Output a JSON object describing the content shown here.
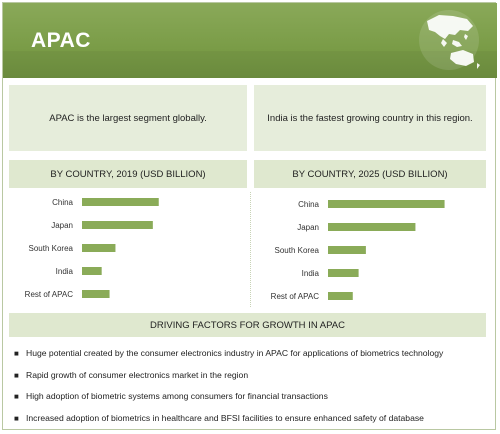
{
  "header": {
    "title": "APAC",
    "map_icon": "asia-pacific-map-icon"
  },
  "callouts": {
    "left": "APAC is the largest segment globally.",
    "right": "India is the fastest growing country in this region."
  },
  "charts_titles": {
    "left": "BY COUNTRY, 2019 (USD BILLION)",
    "right": "BY COUNTRY, 2025 (USD BILLION)"
  },
  "chart_data": [
    {
      "type": "bar",
      "orientation": "horizontal",
      "title": "BY COUNTRY, 2019 (USD BILLION)",
      "categories": [
        "China",
        "Japan",
        "South Korea",
        "India",
        "Rest of APAC"
      ],
      "values": [
        3.9,
        3.6,
        1.7,
        1.0,
        1.4
      ],
      "xlim": [
        0,
        6.2
      ],
      "grid": false,
      "color": "#8aab58"
    },
    {
      "type": "bar",
      "orientation": "horizontal",
      "title": "BY COUNTRY, 2025 (USD BILLION)",
      "categories": [
        "China",
        "Japan",
        "South Korea",
        "India",
        "Rest of APAC"
      ],
      "values": [
        8.0,
        6.0,
        2.6,
        2.1,
        1.7
      ],
      "xlim": [
        0,
        10.5
      ],
      "grid": false,
      "color": "#8aab58"
    }
  ],
  "factors": {
    "heading": "DRIVING FACTORS FOR GROWTH IN APAC",
    "bullet_char": "■",
    "items": [
      "Huge potential created by the consumer electronics industry in APAC for applications of biometrics technology",
      "Rapid growth of consumer electronics market in the region",
      "High adoption of biometric systems among consumers for financial transactions",
      "Increased adoption of biometrics in healthcare and BFSI facilities to ensure enhanced safety of database"
    ]
  }
}
